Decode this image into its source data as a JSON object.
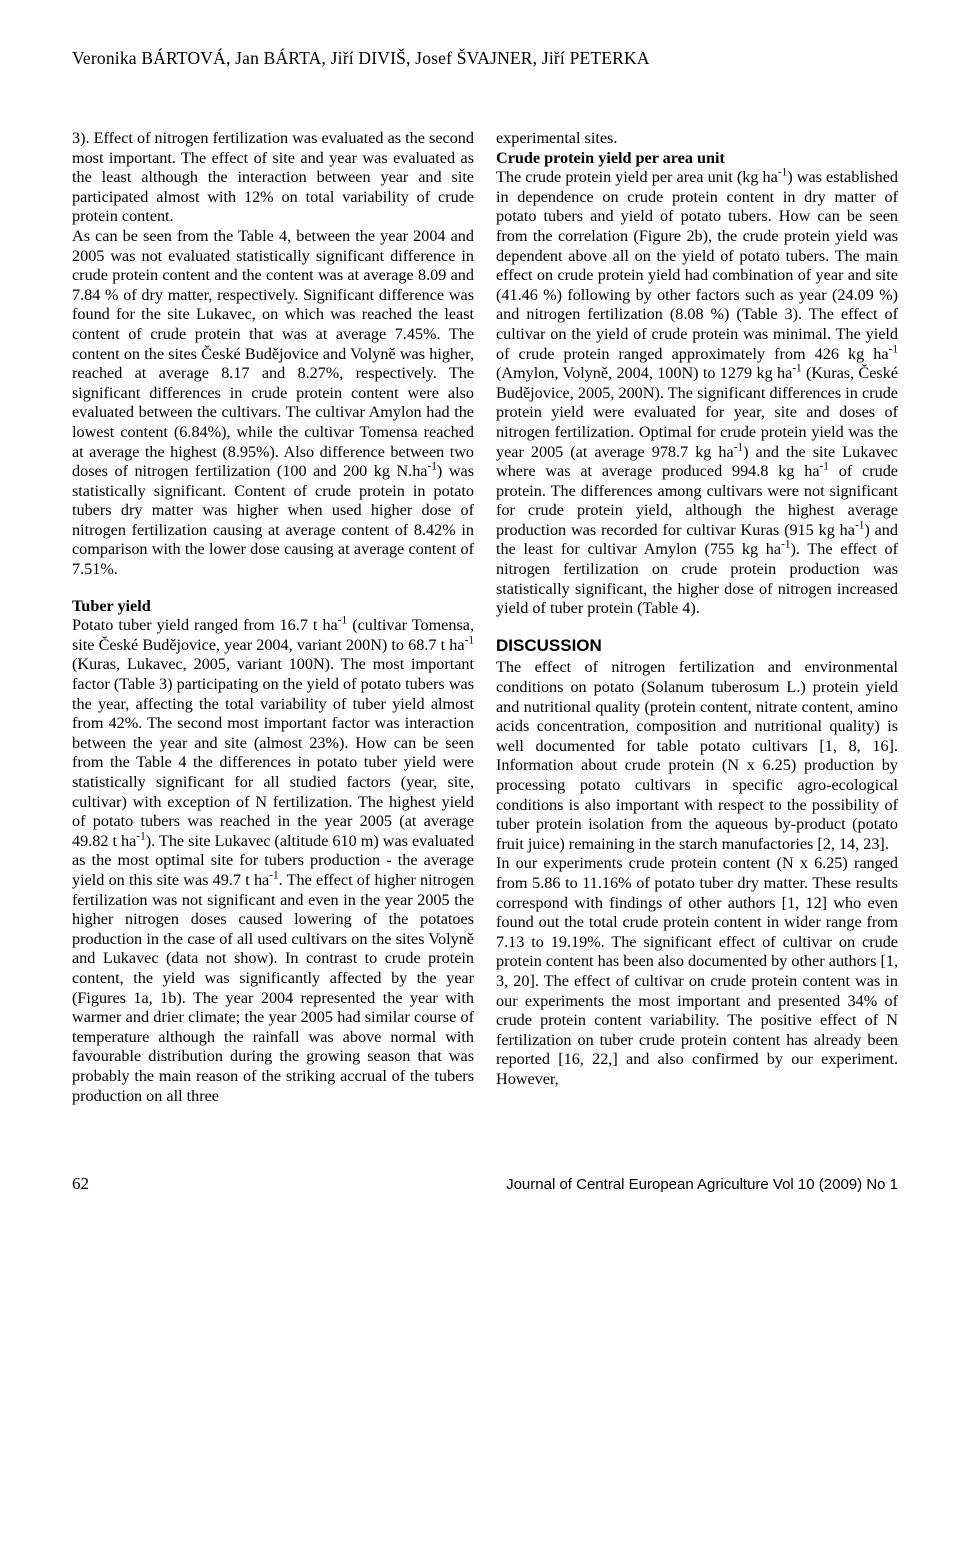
{
  "authors": "Veronika BÁRTOVÁ, Jan BÁRTA, Jiří DIVIŠ, Josef ŠVAJNER, Jiří PETERKA",
  "left": {
    "p1": "3). Effect of nitrogen fertilization was evaluated as the second most important. The effect of site and year was evaluated as the least although the interaction between year and site participated almost with 12% on total variability of crude protein content.",
    "p2": "As can be seen from the Table 4, between the year 2004 and 2005 was not evaluated statistically significant difference in crude protein content and the content was at average 8.09 and 7.84 % of dry matter, respectively. Significant difference was found for the site Lukavec, on which was reached the least content of crude protein that was at average 7.45%. The content on the sites České Budějovice and Volyně was higher, reached at average 8.17 and 8.27%, respectively. The significant differences in crude protein content were also evaluated between the cultivars. The cultivar Amylon had the lowest content (6.84%), while the cultivar Tomensa reached at average the highest (8.95%). Also difference between two doses of nitrogen fertilization (100 and 200 kg N.ha-1) was statistically significant. Content of crude protein in potato tubers dry matter was higher when used higher dose of nitrogen fertilization causing at average content of 8.42% in comparison with the lower dose causing at average content of 7.51%.",
    "h_tuber": "Tuber yield",
    "p3": "Potato tuber yield ranged from 16.7 t ha-1 (cultivar Tomensa, site České Budějovice, year 2004, variant 200N) to 68.7 t ha-1 (Kuras, Lukavec, 2005, variant 100N). The most important factor (Table 3) participating on the yield of potato tubers was the year, affecting the total variability of tuber yield almost from 42%. The second most important factor was interaction between the year and site (almost 23%). How can be seen from the Table 4 the differences in potato tuber yield were statistically significant for all studied factors (year, site, cultivar) with exception of N fertilization. The highest yield of potato tubers was reached in the year 2005 (at average 49.82 t ha-1). The site Lukavec (altitude 610 m) was evaluated as the most optimal site for tubers production - the average yield on this site was 49.7 t ha-1. The effect of higher nitrogen fertilization was not significant and even in the year 2005 the higher nitrogen doses caused lowering of the potatoes production in the case of all used cultivars on the sites Volyně and Lukavec (data not show). In contrast to crude protein content, the yield was significantly affected by the year (Figures 1a, 1b). The year 2004 represented the year with warmer and drier climate; the year 2005 had similar course of temperature although the rainfall was above normal with favourable distribution during the growing season that was probably the main reason of the striking accrual of the tubers production on all three"
  },
  "right": {
    "p1": "experimental sites.",
    "h_crude": "Crude protein yield per area unit",
    "p2": "The crude protein yield per area unit (kg ha-1) was established in dependence on crude protein content in dry matter of potato tubers and yield of potato tubers. How can be seen from the correlation (Figure 2b), the crude protein yield was dependent above all on the yield of potato tubers. The main effect on crude protein yield had combination of year and site (41.46 %) following by other factors such as year (24.09 %) and nitrogen fertilization (8.08 %) (Table 3). The effect of cultivar on the yield of crude protein was minimal. The yield of crude protein ranged approximately from 426 kg ha-1 (Amylon, Volyně, 2004, 100N) to 1279 kg ha-1 (Kuras, České Budějovice, 2005, 200N). The significant differences in crude protein yield were evaluated for year, site and doses of nitrogen fertilization. Optimal for crude protein yield was the year 2005 (at average 978.7 kg ha-1) and the site Lukavec where was at average produced 994.8 kg ha-1 of crude protein. The differences among cultivars were not significant for crude protein yield, although the highest average production was recorded for cultivar Kuras (915 kg ha-1) and the least for cultivar Amylon (755 kg ha-1). The effect of nitrogen fertilization on crude protein production was statistically significant, the higher dose of nitrogen increased yield of tuber protein (Table 4).",
    "h_disc": "DISCUSSION",
    "p3": "The effect of nitrogen fertilization and environmental conditions on potato (Solanum tuberosum L.) protein yield and nutritional quality (protein content, nitrate content, amino acids concentration, composition and nutritional quality) is well documented for table potato cultivars [1, 8, 16]. Information about crude protein (N x 6.25) production by processing potato cultivars in specific agro-ecological conditions is also important with respect to the possibility of tuber protein isolation from the aqueous by-product (potato fruit juice) remaining in the starch manufactories [2, 14, 23].",
    "p4": "In our experiments crude protein content (N x 6.25) ranged from 5.86 to 11.16% of potato tuber dry matter. These results correspond with findings of other authors [1, 12] who even found out the total crude protein content in wider range from 7.13 to 19.19%. The significant effect of cultivar on crude protein content has been also documented by other authors [1, 3, 20]. The effect of cultivar on crude protein content was in our experiments the most important and presented 34% of crude protein content variability. The positive effect of N fertilization on tuber crude protein content has already been reported [16, 22,] and also confirmed by our experiment. However,"
  },
  "footer": {
    "page": "62",
    "journal": "Journal of Central European Agriculture Vol 10 (2009) No 1"
  }
}
